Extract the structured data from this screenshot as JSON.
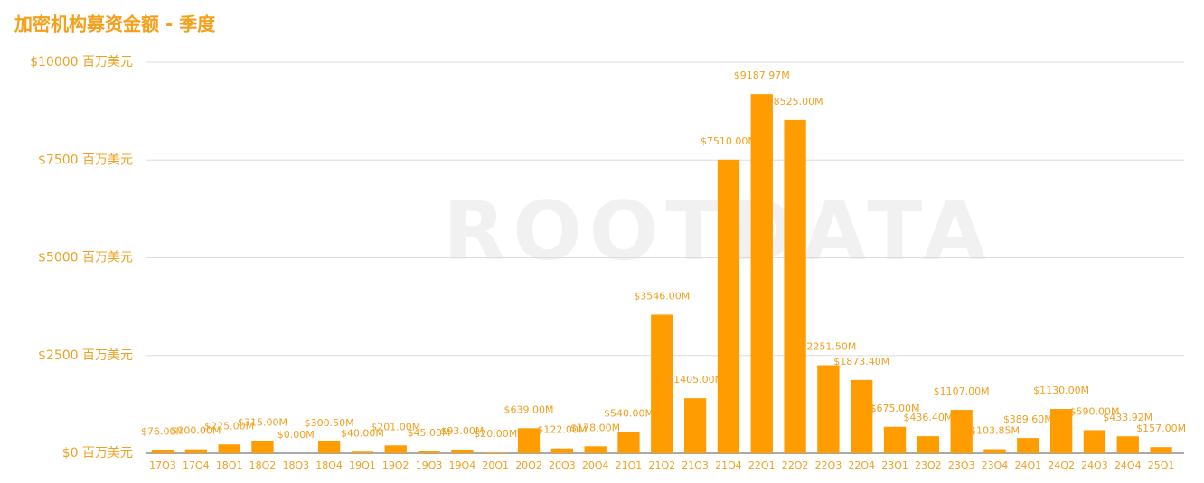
{
  "chart_data": {
    "type": "bar",
    "title": "加密机构募资金额 - 季度",
    "watermark": "ROOTDATA",
    "categories": [
      "17Q3",
      "17Q4",
      "18Q1",
      "18Q2",
      "18Q3",
      "18Q4",
      "19Q1",
      "19Q2",
      "19Q3",
      "19Q4",
      "20Q1",
      "20Q2",
      "20Q3",
      "20Q4",
      "21Q1",
      "21Q2",
      "21Q3",
      "21Q4",
      "22Q1",
      "22Q2",
      "22Q3",
      "22Q4",
      "23Q1",
      "23Q2",
      "23Q3",
      "23Q4",
      "24Q1",
      "24Q2",
      "24Q3",
      "24Q4",
      "25Q1"
    ],
    "values": [
      76,
      100,
      225,
      315,
      0,
      300.5,
      40,
      201,
      45,
      93,
      20,
      639,
      122,
      178,
      540,
      3546,
      1405,
      7510,
      9187.97,
      8525,
      2251.5,
      1873.4,
      675,
      436.4,
      1107,
      103.85,
      389.6,
      1130,
      590,
      433.92,
      157
    ],
    "value_labels": [
      "$76.00M",
      "$100.00M",
      "$225.00M",
      "$315.00M",
      "$0.00M",
      "$300.50M",
      "$40.00M",
      "$201.00M",
      "$45.00M",
      "$93.00M",
      "$20.00M",
      "$639.00M",
      "$122.00M",
      "$178.00M",
      "$540.00M",
      "$3546.00M",
      "$1405.00M",
      "$7510.00M",
      "$9187.97M",
      "$8525.00M",
      "$2251.50M",
      "$1873.40M",
      "$675.00M",
      "$436.40M",
      "$1107.00M",
      "$103.85M",
      "$389.60M",
      "$1130.00M",
      "$590.00M",
      "$433.92M",
      "$157.00M"
    ],
    "color": "#ff9c00",
    "ylim": [
      0,
      10000
    ],
    "yticks": [
      {
        "value": 0,
        "label": "$0 百万美元"
      },
      {
        "value": 2500,
        "label": "$2500 百万美元"
      },
      {
        "value": 5000,
        "label": "$5000 百万美元"
      },
      {
        "value": 7500,
        "label": "$7500 百万美元"
      },
      {
        "value": 10000,
        "label": "$10000 百万美元"
      }
    ],
    "grid": true
  }
}
